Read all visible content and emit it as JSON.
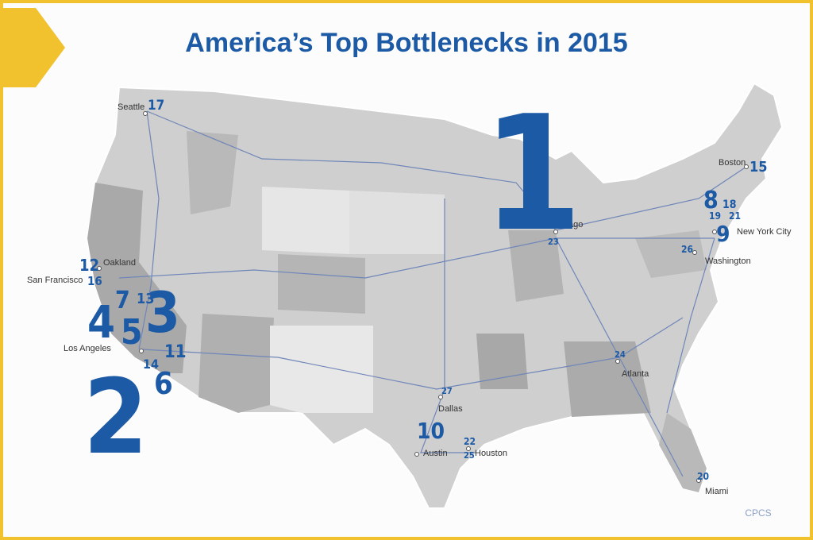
{
  "title": "America’s Top Bottlenecks in 2015",
  "ranks": [
    1,
    2,
    3,
    4,
    5,
    6,
    7,
    8,
    9,
    10,
    11,
    12,
    13,
    14,
    15,
    16,
    17,
    18,
    19,
    20,
    21,
    22,
    23,
    24,
    25,
    26,
    27
  ],
  "cities": [
    "Seattle",
    "Oakland",
    "San Francisco",
    "Los Angeles",
    "Chicago",
    "Boston",
    "New York City",
    "Washington",
    "Atlanta",
    "Dallas",
    "Austin",
    "Houston",
    "Miami"
  ],
  "credit": "CPCS"
}
